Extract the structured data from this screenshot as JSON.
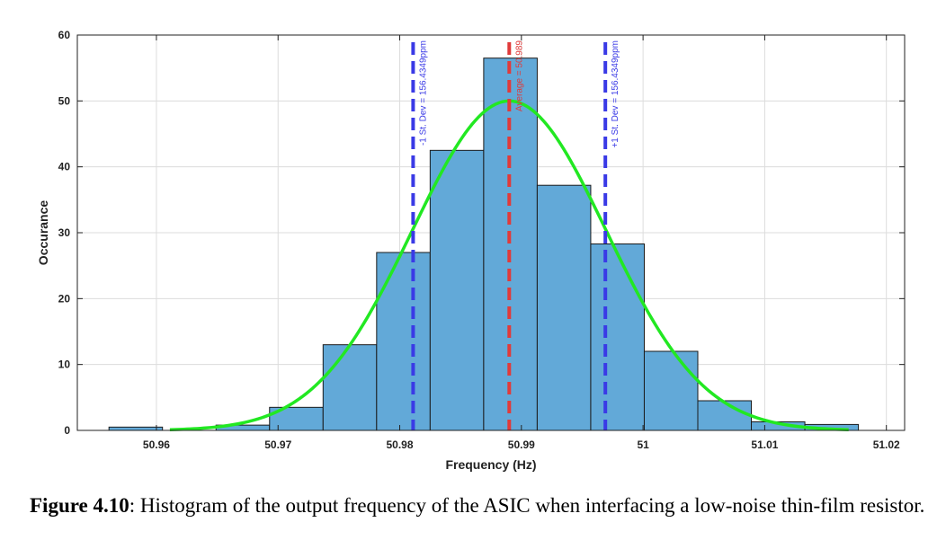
{
  "chart_data": {
    "type": "bar",
    "subtype": "histogram",
    "xlabel": "Frequency (Hz)",
    "ylabel": "Occurance",
    "xlim": [
      50.9535,
      51.0215
    ],
    "ylim": [
      0,
      60
    ],
    "xticks": [
      "50.96",
      "50.97",
      "50.98",
      "50.99",
      "51",
      "51.01",
      "51.02"
    ],
    "xtick_values": [
      50.96,
      50.97,
      50.98,
      50.99,
      51.0,
      51.01,
      51.02
    ],
    "yticks": [
      0,
      10,
      20,
      30,
      40,
      50,
      60
    ],
    "grid": true,
    "bin_width": 0.0044,
    "bins": [
      {
        "left": 50.9561,
        "count": 0.5
      },
      {
        "left": 50.9605,
        "count": 0
      },
      {
        "left": 50.9649,
        "count": 0.8
      },
      {
        "left": 50.9693,
        "count": 3.5
      },
      {
        "left": 50.9737,
        "count": 13
      },
      {
        "left": 50.9781,
        "count": 27
      },
      {
        "left": 50.9825,
        "count": 42.5
      },
      {
        "left": 50.9869,
        "count": 56.5
      },
      {
        "left": 50.9913,
        "count": 37.2
      },
      {
        "left": 50.9957,
        "count": 28.3
      },
      {
        "left": 51.0001,
        "count": 12
      },
      {
        "left": 51.0045,
        "count": 4.5
      },
      {
        "left": 51.0089,
        "count": 1.3
      },
      {
        "left": 51.0133,
        "count": 0.9
      }
    ],
    "bar_color": "#62a9d8",
    "fit": {
      "mean": 50.989,
      "sigma": 0.00797,
      "peak": 50,
      "color": "#22e822"
    },
    "vlines": [
      {
        "x": 50.9811,
        "label": "-1 St. Dev = 156.4349ppm",
        "color": "#3a3ae6"
      },
      {
        "x": 50.989,
        "label": "Average = 50.989",
        "color": "#e03a3a"
      },
      {
        "x": 50.9969,
        "label": "+1 St. Dev = 156.4349ppm",
        "color": "#3a3ae6"
      }
    ]
  },
  "caption": {
    "label": "Figure 4.10",
    "text": ": Histogram of the output frequency of the ASIC when interfacing a low-noise thin-film resistor."
  }
}
